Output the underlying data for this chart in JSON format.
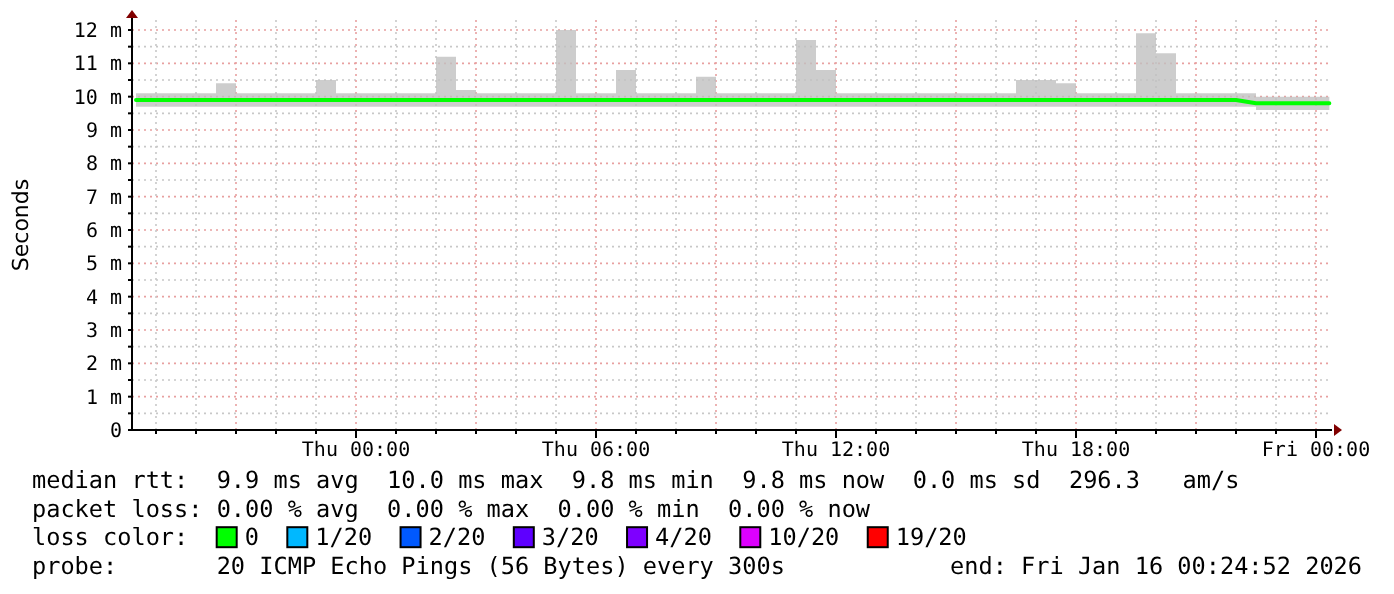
{
  "chart_data": {
    "type": "line",
    "ylabel": "Seconds",
    "x": [
      "2026-01-14T18:30",
      "2026-01-14T19:00",
      "2026-01-14T19:30",
      "2026-01-14T20:00",
      "2026-01-14T20:30",
      "2026-01-14T21:00",
      "2026-01-14T21:30",
      "2026-01-14T22:00",
      "2026-01-14T22:30",
      "2026-01-14T23:00",
      "2026-01-14T23:30",
      "2026-01-15T00:00",
      "2026-01-15T00:30",
      "2026-01-15T01:00",
      "2026-01-15T01:30",
      "2026-01-15T02:00",
      "2026-01-15T02:30",
      "2026-01-15T03:00",
      "2026-01-15T03:30",
      "2026-01-15T04:00",
      "2026-01-15T04:30",
      "2026-01-15T05:00",
      "2026-01-15T05:30",
      "2026-01-15T06:00",
      "2026-01-15T06:30",
      "2026-01-15T07:00",
      "2026-01-15T07:30",
      "2026-01-15T08:00",
      "2026-01-15T08:30",
      "2026-01-15T09:00",
      "2026-01-15T09:30",
      "2026-01-15T10:00",
      "2026-01-15T10:30",
      "2026-01-15T11:00",
      "2026-01-15T11:30",
      "2026-01-15T12:00",
      "2026-01-15T12:30",
      "2026-01-15T13:00",
      "2026-01-15T13:30",
      "2026-01-15T14:00",
      "2026-01-15T14:30",
      "2026-01-15T15:00",
      "2026-01-15T15:30",
      "2026-01-15T16:00",
      "2026-01-15T16:30",
      "2026-01-15T17:00",
      "2026-01-15T17:30",
      "2026-01-15T18:00",
      "2026-01-15T18:30",
      "2026-01-15T19:00",
      "2026-01-15T19:30",
      "2026-01-15T20:00",
      "2026-01-15T20:30",
      "2026-01-15T21:00",
      "2026-01-15T21:30",
      "2026-01-15T22:00",
      "2026-01-15T22:30",
      "2026-01-15T23:00",
      "2026-01-15T23:30",
      "2026-01-16T00:00",
      "2026-01-16T00:20"
    ],
    "series": [
      {
        "name": "0",
        "color": "#00ff00",
        "values": [
          9.9,
          9.9,
          9.9,
          9.9,
          9.9,
          9.9,
          9.9,
          9.9,
          9.9,
          9.9,
          9.9,
          9.9,
          9.9,
          9.9,
          9.9,
          9.9,
          9.9,
          9.9,
          9.9,
          9.9,
          9.9,
          9.9,
          9.9,
          9.9,
          9.9,
          9.9,
          9.9,
          9.9,
          9.9,
          9.9,
          9.9,
          9.9,
          9.9,
          9.9,
          9.9,
          9.9,
          9.9,
          9.9,
          9.9,
          9.9,
          9.9,
          9.9,
          9.9,
          9.9,
          9.9,
          9.9,
          9.9,
          9.9,
          9.9,
          9.9,
          9.9,
          9.9,
          9.9,
          9.9,
          9.9,
          9.9,
          9.8,
          9.8,
          9.8,
          9.8,
          9.8
        ],
        "lower": [
          9.7,
          9.7,
          9.7,
          9.7,
          9.7,
          9.7,
          9.7,
          9.7,
          9.7,
          9.7,
          9.7,
          9.7,
          9.7,
          9.7,
          9.7,
          9.7,
          9.7,
          9.7,
          9.7,
          9.7,
          9.7,
          9.7,
          9.7,
          9.7,
          9.7,
          9.7,
          9.7,
          9.7,
          9.7,
          9.7,
          9.7,
          9.7,
          9.7,
          9.7,
          9.7,
          9.7,
          9.7,
          9.7,
          9.7,
          9.7,
          9.7,
          9.7,
          9.7,
          9.7,
          9.7,
          9.7,
          9.7,
          9.7,
          9.7,
          9.7,
          9.7,
          9.7,
          9.7,
          9.7,
          9.7,
          9.7,
          9.6,
          9.6,
          9.6,
          9.6,
          9.6
        ],
        "upper": [
          10.1,
          10.1,
          10.1,
          10.1,
          10.4,
          10.1,
          10.1,
          10.1,
          10.1,
          10.5,
          10.1,
          10.1,
          10.1,
          10.1,
          10.1,
          11.2,
          10.2,
          10.1,
          10.1,
          10.1,
          10.1,
          12.0,
          10.1,
          10.1,
          10.8,
          10.1,
          10.1,
          10.1,
          10.6,
          10.1,
          10.1,
          10.1,
          10.1,
          11.7,
          10.8,
          10.1,
          10.1,
          10.1,
          10.1,
          10.1,
          10.1,
          10.1,
          10.1,
          10.1,
          10.5,
          10.5,
          10.4,
          10.1,
          10.1,
          10.1,
          11.9,
          11.3,
          10.1,
          10.1,
          10.1,
          10.1,
          10.0,
          10.0,
          10.0,
          10.0,
          10.0
        ]
      },
      {
        "name": "1/20",
        "color": "#00b8ff",
        "values": [
          null,
          null,
          null,
          null,
          null,
          null,
          null,
          null,
          null,
          null,
          null,
          null,
          null,
          null,
          null,
          null,
          null,
          null,
          null,
          null,
          null,
          null,
          null,
          null,
          null,
          null,
          null,
          null,
          null,
          null,
          null,
          null,
          null,
          null,
          null,
          null,
          null,
          null,
          null,
          null,
          null,
          null,
          null,
          null,
          null,
          null,
          null,
          null,
          null,
          null,
          null,
          null,
          null,
          null,
          null,
          null,
          null,
          null,
          null,
          null,
          null
        ]
      },
      {
        "name": "2/20",
        "color": "#0059ff",
        "values": [
          null,
          null,
          null,
          null,
          null,
          null,
          null,
          null,
          null,
          null,
          null,
          null,
          null,
          null,
          null,
          null,
          null,
          null,
          null,
          null,
          null,
          null,
          null,
          null,
          null,
          null,
          null,
          null,
          null,
          null,
          null,
          null,
          null,
          null,
          null,
          null,
          null,
          null,
          null,
          null,
          null,
          null,
          null,
          null,
          null,
          null,
          null,
          null,
          null,
          null,
          null,
          null,
          null,
          null,
          null,
          null,
          null,
          null,
          null,
          null,
          null
        ]
      },
      {
        "name": "3/20",
        "color": "#5e00ff",
        "values": [
          null,
          null,
          null,
          null,
          null,
          null,
          null,
          null,
          null,
          null,
          null,
          null,
          null,
          null,
          null,
          null,
          null,
          null,
          null,
          null,
          null,
          null,
          null,
          null,
          null,
          null,
          null,
          null,
          null,
          null,
          null,
          null,
          null,
          null,
          null,
          null,
          null,
          null,
          null,
          null,
          null,
          null,
          null,
          null,
          null,
          null,
          null,
          null,
          null,
          null,
          null,
          null,
          null,
          null,
          null,
          null,
          null,
          null,
          null,
          null,
          null
        ]
      },
      {
        "name": "4/20",
        "color": "#7e00ff",
        "values": [
          null,
          null,
          null,
          null,
          null,
          null,
          null,
          null,
          null,
          null,
          null,
          null,
          null,
          null,
          null,
          null,
          null,
          null,
          null,
          null,
          null,
          null,
          null,
          null,
          null,
          null,
          null,
          null,
          null,
          null,
          null,
          null,
          null,
          null,
          null,
          null,
          null,
          null,
          null,
          null,
          null,
          null,
          null,
          null,
          null,
          null,
          null,
          null,
          null,
          null,
          null,
          null,
          null,
          null,
          null,
          null,
          null,
          null,
          null,
          null,
          null
        ]
      },
      {
        "name": "10/20",
        "color": "#dd00ff",
        "values": [
          null,
          null,
          null,
          null,
          null,
          null,
          null,
          null,
          null,
          null,
          null,
          null,
          null,
          null,
          null,
          null,
          null,
          null,
          null,
          null,
          null,
          null,
          null,
          null,
          null,
          null,
          null,
          null,
          null,
          null,
          null,
          null,
          null,
          null,
          null,
          null,
          null,
          null,
          null,
          null,
          null,
          null,
          null,
          null,
          null,
          null,
          null,
          null,
          null,
          null,
          null,
          null,
          null,
          null,
          null,
          null,
          null,
          null,
          null,
          null,
          null
        ]
      },
      {
        "name": "19/20",
        "color": "#ff0000",
        "values": [
          null,
          null,
          null,
          null,
          null,
          null,
          null,
          null,
          null,
          null,
          null,
          null,
          null,
          null,
          null,
          null,
          null,
          null,
          null,
          null,
          null,
          null,
          null,
          null,
          null,
          null,
          null,
          null,
          null,
          null,
          null,
          null,
          null,
          null,
          null,
          null,
          null,
          null,
          null,
          null,
          null,
          null,
          null,
          null,
          null,
          null,
          null,
          null,
          null,
          null,
          null,
          null,
          null,
          null,
          null,
          null,
          null,
          null,
          null,
          null,
          null
        ]
      }
    ],
    "legend": "bottom",
    "legend_title": "loss color:",
    "xlim": [
      "2026-01-14T18:24",
      "2026-01-16T00:24"
    ],
    "xticks": [
      {
        "value": "2026-01-14T19:00",
        "label": null
      },
      {
        "value": "2026-01-14T20:00",
        "label": null
      },
      {
        "value": "2026-01-14T21:00",
        "label": null
      },
      {
        "value": "2026-01-14T22:00",
        "label": null
      },
      {
        "value": "2026-01-14T23:00",
        "label": null
      },
      {
        "value": "2026-01-15T00:00",
        "label": "Thu 00:00"
      },
      {
        "value": "2026-01-15T01:00",
        "label": null
      },
      {
        "value": "2026-01-15T02:00",
        "label": null
      },
      {
        "value": "2026-01-15T03:00",
        "label": null
      },
      {
        "value": "2026-01-15T04:00",
        "label": null
      },
      {
        "value": "2026-01-15T05:00",
        "label": null
      },
      {
        "value": "2026-01-15T06:00",
        "label": "Thu 06:00"
      },
      {
        "value": "2026-01-15T07:00",
        "label": null
      },
      {
        "value": "2026-01-15T08:00",
        "label": null
      },
      {
        "value": "2026-01-15T09:00",
        "label": null
      },
      {
        "value": "2026-01-15T10:00",
        "label": null
      },
      {
        "value": "2026-01-15T11:00",
        "label": null
      },
      {
        "value": "2026-01-15T12:00",
        "label": "Thu 12:00"
      },
      {
        "value": "2026-01-15T13:00",
        "label": null
      },
      {
        "value": "2026-01-15T14:00",
        "label": null
      },
      {
        "value": "2026-01-15T15:00",
        "label": null
      },
      {
        "value": "2026-01-15T16:00",
        "label": null
      },
      {
        "value": "2026-01-15T17:00",
        "label": null
      },
      {
        "value": "2026-01-15T18:00",
        "label": "Thu 18:00"
      },
      {
        "value": "2026-01-15T19:00",
        "label": null
      },
      {
        "value": "2026-01-15T20:00",
        "label": null
      },
      {
        "value": "2026-01-15T21:00",
        "label": null
      },
      {
        "value": "2026-01-15T22:00",
        "label": null
      },
      {
        "value": "2026-01-15T23:00",
        "label": null
      },
      {
        "value": "2026-01-16T00:00",
        "label": "Fri 00:00"
      }
    ],
    "ylim": [
      0,
      12.3
    ],
    "yticks": [
      0,
      {
        "value": 0.5,
        "label": null
      },
      {
        "value": 1,
        "label": "1 m"
      },
      {
        "value": 1.5,
        "label": null
      },
      {
        "value": 2,
        "label": "2 m"
      },
      {
        "value": 2.5,
        "label": null
      },
      {
        "value": 3,
        "label": "3 m"
      },
      {
        "value": 3.5,
        "label": null
      },
      {
        "value": 4,
        "label": "4 m"
      },
      {
        "value": 4.5,
        "label": null
      },
      {
        "value": 5,
        "label": "5 m"
      },
      {
        "value": 5.5,
        "label": null
      },
      {
        "value": 6,
        "label": "6 m"
      },
      {
        "value": 6.5,
        "label": null
      },
      {
        "value": 7,
        "label": "7 m"
      },
      {
        "value": 7.5,
        "label": null
      },
      {
        "value": 8,
        "label": "8 m"
      },
      {
        "value": 8.5,
        "label": null
      },
      {
        "value": 9,
        "label": "9 m"
      },
      {
        "value": 9.5,
        "label": null
      },
      {
        "value": 10,
        "label": "10 m"
      },
      {
        "value": 10.5,
        "label": null
      },
      {
        "value": 11,
        "label": "11 m"
      },
      {
        "value": 11.5,
        "label": null
      },
      {
        "value": 12,
        "label": "12 m"
      }
    ],
    "grid": true,
    "annotations": [
      "median rtt:  9.9 ms avg  10.0 ms max  9.8 ms min  9.8 ms now  0.0 ms sd  296.3   am/s",
      "packet loss: 0.00 % avg  0.00 % max  0.00 % min  0.00 % now",
      "probe:       20 ICMP Echo Pings (56 Bytes) every 300s",
      "end: Fri Jan 16 00:24:52 2026"
    ]
  }
}
